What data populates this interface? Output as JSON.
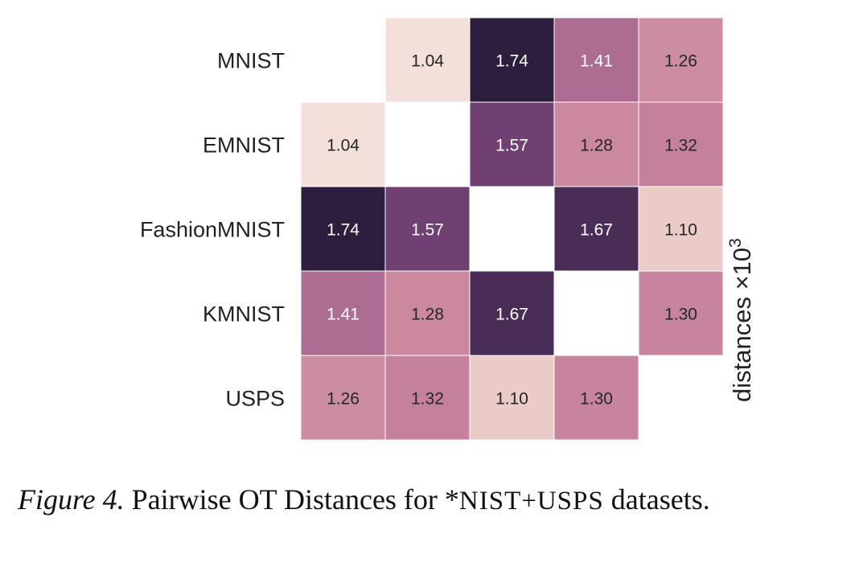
{
  "chart_data": {
    "type": "heatmap",
    "rows": [
      "MNIST",
      "EMNIST",
      "FashionMNIST",
      "KMNIST",
      "USPS"
    ],
    "columns": [
      "MNIST",
      "EMNIST",
      "FashionMNIST",
      "KMNIST",
      "USPS"
    ],
    "values": [
      [
        null,
        1.04,
        1.74,
        1.41,
        1.26
      ],
      [
        1.04,
        null,
        1.57,
        1.28,
        1.32
      ],
      [
        1.74,
        1.57,
        null,
        1.67,
        1.1
      ],
      [
        1.41,
        1.28,
        1.67,
        null,
        1.3
      ],
      [
        1.26,
        1.32,
        1.1,
        1.3,
        null
      ]
    ],
    "value_labels": [
      [
        "",
        "1.04",
        "1.74",
        "1.41",
        "1.26"
      ],
      [
        "1.04",
        "",
        "1.57",
        "1.28",
        "1.32"
      ],
      [
        "1.74",
        "1.57",
        "",
        "1.67",
        "1.10"
      ],
      [
        "1.41",
        "1.28",
        "1.67",
        "",
        "1.30"
      ],
      [
        "1.26",
        "1.32",
        "1.10",
        "1.30",
        ""
      ]
    ],
    "colorbar_label": "distances ×10",
    "colorbar_exponent": "3",
    "color_range": [
      1.04,
      1.74
    ],
    "color_low": "#f3e0da",
    "color_high": "#2d1e3e",
    "diagonal_masked": true,
    "grid": false
  },
  "caption": {
    "prefix": "Figure 4.",
    "text_before": "Pairwise OT Distances for *",
    "mono": "NIST+USPS",
    "text_after": "datasets."
  }
}
